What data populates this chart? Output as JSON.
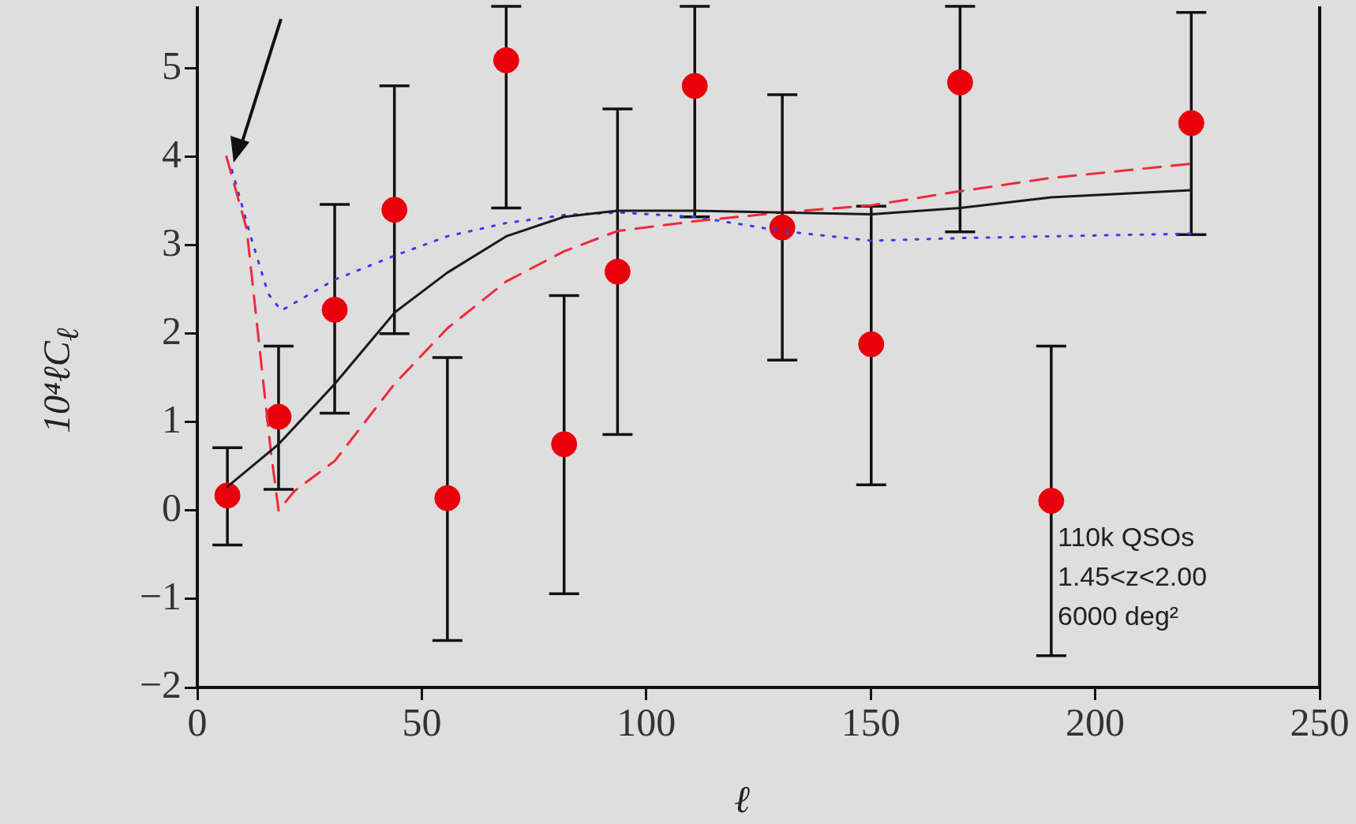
{
  "chart_data": {
    "type": "scatter",
    "xlabel": "ℓ",
    "ylabel": "10⁴ℓC$_{ℓ}$",
    "annotations": [
      "110k QSOs",
      "1.45<z<2.00",
      "6000 deg²"
    ],
    "xlim": [
      0,
      250
    ],
    "xticks": [
      0,
      50,
      100,
      150,
      200,
      250
    ],
    "ylim": [
      -2,
      5.7
    ],
    "yticks": [
      -2,
      -1,
      0,
      1,
      2,
      3,
      4,
      5
    ],
    "grid": false,
    "legend": false,
    "series": [
      {
        "type": "scatter",
        "color": "#e8000b",
        "marker": "circle",
        "x": [
          6.7,
          18.1,
          30.6,
          43.9,
          55.7,
          68.8,
          81.7,
          93.6,
          110.8,
          130.3,
          150.1,
          169.9,
          190.2,
          221.4
        ],
        "values": [
          0.17,
          1.06,
          2.27,
          3.4,
          0.14,
          5.09,
          0.75,
          2.7,
          4.8,
          3.2,
          1.88,
          4.84,
          0.11,
          4.38
        ],
        "errors": [
          [
            -0.39,
            0.71
          ],
          [
            0.24,
            1.86
          ],
          [
            1.1,
            3.46
          ],
          [
            2.0,
            4.8
          ],
          [
            -1.47,
            1.73
          ],
          [
            3.42,
            5.7
          ],
          [
            -0.94,
            2.43
          ],
          [
            0.86,
            4.54
          ],
          [
            3.32,
            5.7
          ],
          [
            1.7,
            4.7
          ],
          [
            0.29,
            3.44
          ],
          [
            3.15,
            5.7
          ],
          [
            -1.64,
            1.86
          ],
          [
            3.12,
            5.63
          ]
        ]
      },
      {
        "type": "line",
        "color": "#1a1a1a",
        "line_style": "solid",
        "marker": "none",
        "x": [
          6.7,
          18.1,
          30.6,
          44,
          55.7,
          68.8,
          81.7,
          93.6,
          110.8,
          130.3,
          150.1,
          169.9,
          190.2,
          221.4
        ],
        "values": [
          0.27,
          0.75,
          1.43,
          2.24,
          2.69,
          3.1,
          3.32,
          3.39,
          3.39,
          3.37,
          3.35,
          3.42,
          3.54,
          3.62
        ]
      },
      {
        "type": "line",
        "color": "#ee2a3a",
        "line_style": "dashed",
        "marker": "none",
        "x": [
          6.5,
          11,
          13.9,
          16.4,
          18.1,
          21.6,
          30.6,
          43.9,
          55.7,
          68.8,
          81.7,
          93.6,
          110.8,
          130.3,
          150.1,
          169.9,
          190.2,
          221.4
        ],
        "values": [
          4.0,
          3.18,
          1.82,
          0.66,
          0,
          0.22,
          0.56,
          1.43,
          2.06,
          2.59,
          2.93,
          3.16,
          3.27,
          3.37,
          3.45,
          3.61,
          3.76,
          3.92
        ]
      },
      {
        "type": "line",
        "color": "#3a3aee",
        "line_style": "dotted",
        "marker": "none",
        "x": [
          7.7,
          12,
          15.8,
          18.7,
          30.6,
          43.9,
          55.7,
          68.8,
          81.7,
          93.6,
          110.8,
          130.3,
          150.1,
          169.9,
          190.2,
          221.4
        ],
        "values": [
          3.85,
          3.08,
          2.45,
          2.26,
          2.61,
          2.88,
          3.1,
          3.25,
          3.34,
          3.37,
          3.32,
          3.16,
          3.05,
          3.08,
          3.1,
          3.13
        ]
      }
    ]
  }
}
